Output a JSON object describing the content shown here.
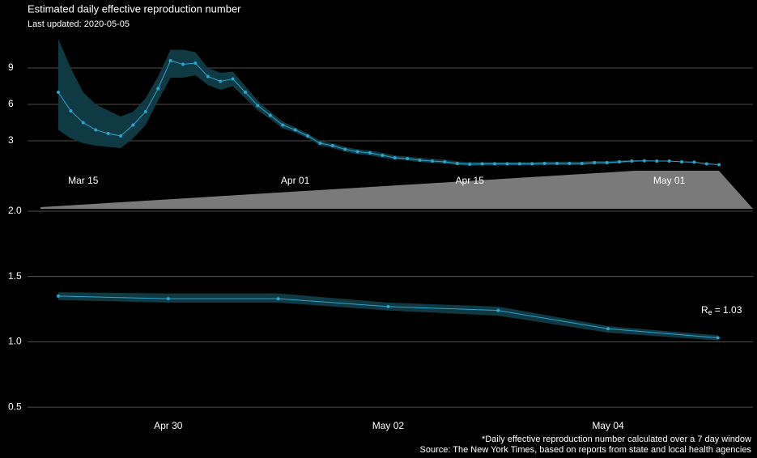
{
  "title": "Estimated daily effective reproduction number",
  "subtitle": "Last updated: 2020-05-05",
  "footnote": "*Daily effective reproduction number calculated over a 7 day window",
  "source": "Source: The New York Times, based on reports from state and local health agencies",
  "chart_data": [
    {
      "type": "line",
      "color": "#2ea3cc",
      "band_color": "#0f3a44",
      "grid": true,
      "categories": [
        null,
        null,
        "Mar 15",
        null,
        null,
        null,
        null,
        null,
        null,
        null,
        null,
        null,
        null,
        null,
        null,
        null,
        null,
        null,
        null,
        "Apr 01",
        null,
        null,
        null,
        null,
        null,
        null,
        null,
        null,
        null,
        null,
        null,
        null,
        null,
        "Apr 15",
        null,
        null,
        null,
        null,
        null,
        null,
        null,
        null,
        null,
        null,
        null,
        null,
        null,
        null,
        null,
        "May 01",
        null,
        null,
        null,
        null
      ],
      "values": [
        7.0,
        5.47,
        4.5,
        3.9,
        3.6,
        3.4,
        4.3,
        5.4,
        7.3,
        9.6,
        9.3,
        9.4,
        8.3,
        7.9,
        8.1,
        7.0,
        5.9,
        5.1,
        4.3,
        3.9,
        3.4,
        2.8,
        2.6,
        2.3,
        2.1,
        2.0,
        1.8,
        1.6,
        1.53,
        1.4,
        1.33,
        1.27,
        1.13,
        1.07,
        1.1,
        1.1,
        1.1,
        1.1,
        1.1,
        1.13,
        1.13,
        1.13,
        1.13,
        1.2,
        1.2,
        1.27,
        1.33,
        1.35,
        1.33,
        1.33,
        1.27,
        1.24,
        1.1,
        1.03
      ],
      "upper": [
        11.4,
        9.0,
        7.0,
        6.0,
        5.5,
        5.0,
        5.4,
        6.5,
        8.3,
        10.5,
        10.5,
        10.3,
        9.0,
        8.6,
        8.7,
        7.5,
        6.3,
        5.4,
        4.6,
        4.1,
        3.6,
        3.0,
        2.8,
        2.5,
        2.3,
        2.2,
        2.0,
        1.8,
        1.7,
        1.6,
        1.5,
        1.45,
        1.3,
        1.25,
        1.25,
        1.25,
        1.25,
        1.25,
        1.25,
        1.28,
        1.28,
        1.28,
        1.28,
        1.33,
        1.33,
        1.38,
        1.4,
        1.38,
        1.37,
        1.37,
        1.3,
        1.27,
        1.12,
        1.05
      ],
      "lower": [
        3.9,
        3.2,
        2.8,
        2.6,
        2.5,
        2.4,
        3.2,
        4.3,
        6.3,
        8.2,
        8.2,
        8.4,
        7.6,
        7.2,
        7.5,
        6.5,
        5.5,
        4.8,
        4.0,
        3.7,
        3.2,
        2.6,
        2.4,
        2.1,
        1.9,
        1.8,
        1.6,
        1.45,
        1.38,
        1.25,
        1.18,
        1.12,
        1.0,
        0.95,
        0.97,
        0.97,
        0.97,
        0.97,
        0.97,
        1.0,
        1.0,
        1.0,
        1.0,
        1.08,
        1.08,
        1.16,
        1.24,
        1.32,
        1.3,
        1.3,
        1.24,
        1.2,
        1.07,
        1.01
      ],
      "ylim": [
        0,
        11.9
      ],
      "yticks": [
        3,
        6,
        9
      ]
    },
    {
      "type": "line",
      "color": "#2ea3cc",
      "band_color": "#0f3a44",
      "grid": true,
      "categories": [
        null,
        "Apr 30",
        null,
        "May 02",
        null,
        "May 04",
        null
      ],
      "values": [
        1.35,
        1.33,
        1.33,
        1.27,
        1.24,
        1.1,
        1.03
      ],
      "upper": [
        1.38,
        1.37,
        1.37,
        1.3,
        1.27,
        1.12,
        1.05
      ],
      "lower": [
        1.32,
        1.3,
        1.3,
        1.24,
        1.2,
        1.07,
        1.01
      ],
      "ylim": [
        0.42,
        2.0
      ],
      "yticks": [
        0.5,
        {
          "value": 1,
          "label": "1.0"
        },
        1.5,
        {
          "value": 2,
          "label": "2.0"
        }
      ],
      "annotation": {
        "symbol": "R",
        "subscript": "e",
        "text": "= 1.03"
      }
    }
  ]
}
